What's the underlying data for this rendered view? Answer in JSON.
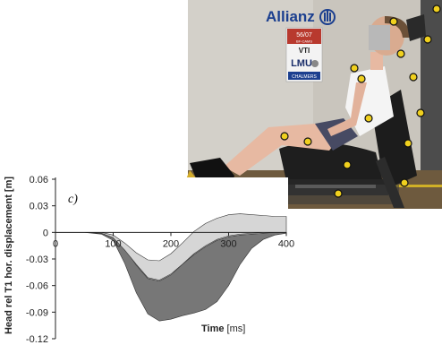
{
  "photo": {
    "logo_text": "Allianz",
    "sign_code": "56/07",
    "sign_sub": "BF-CAMS",
    "sign_vti": "VTI",
    "sign_lmu": "LMU",
    "sign_chalmers": "CHALMERS",
    "colors": {
      "wall": "#c9c5bd",
      "floor": "#6e5a3e",
      "seat": "#1c1c1c",
      "skin": "#e7b9a2",
      "top": "#f4f4f4",
      "shorts": "#474a63",
      "marker_yellow": "#f0d01e"
    }
  },
  "chart_data": {
    "type": "area",
    "panel_label": "c)",
    "ylabel": "Head rel T1 hor. displacement [m]",
    "xlabel": "Time",
    "xunit": "[ms]",
    "xlim": [
      0,
      400
    ],
    "ylim": [
      -0.12,
      0.06
    ],
    "xticks": [
      0,
      100,
      200,
      300,
      400
    ],
    "yticks": [
      0.06,
      0.03,
      0,
      -0.03,
      -0.06,
      -0.09,
      -0.12
    ],
    "ytick_labels": [
      "0.06",
      "0.03",
      "0",
      "-0.03",
      "-0.06",
      "-0.09",
      "-0.12"
    ],
    "grid": false,
    "series": [
      {
        "color": "#777777",
        "x": [
          0,
          50,
          80,
          100,
          120,
          140,
          160,
          180,
          200,
          220,
          240,
          260,
          280,
          300,
          320,
          340,
          360,
          380,
          400
        ],
        "upper": [
          0,
          0,
          -0.001,
          -0.006,
          -0.018,
          -0.037,
          -0.052,
          -0.055,
          -0.048,
          -0.036,
          -0.025,
          -0.016,
          -0.009,
          -0.005,
          -0.003,
          -0.002,
          -0.001,
          0,
          0
        ],
        "lower": [
          0,
          0,
          -0.002,
          -0.009,
          -0.035,
          -0.068,
          -0.092,
          -0.1,
          -0.098,
          -0.094,
          -0.091,
          -0.087,
          -0.078,
          -0.06,
          -0.036,
          -0.018,
          -0.008,
          -0.003,
          -0.001
        ]
      },
      {
        "color": "#d6d6d6",
        "x": [
          0,
          50,
          80,
          100,
          120,
          140,
          160,
          180,
          200,
          220,
          240,
          260,
          280,
          300,
          320,
          340,
          360,
          380,
          400
        ],
        "upper": [
          0,
          0,
          0,
          -0.003,
          -0.012,
          -0.023,
          -0.031,
          -0.032,
          -0.024,
          -0.012,
          0.001,
          0.01,
          0.016,
          0.02,
          0.021,
          0.02,
          0.019,
          0.018,
          0.018
        ],
        "lower": [
          0,
          0,
          -0.001,
          -0.006,
          -0.02,
          -0.036,
          -0.051,
          -0.054,
          -0.047,
          -0.036,
          -0.024,
          -0.015,
          -0.008,
          -0.004,
          -0.002,
          -0.001,
          0,
          0,
          0
        ]
      }
    ]
  }
}
